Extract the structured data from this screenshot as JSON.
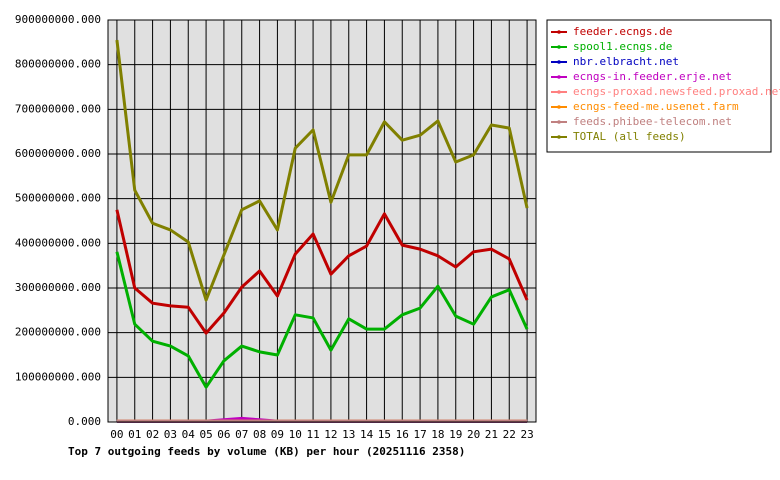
{
  "chart_data": {
    "type": "line",
    "title": "Top 7 outgoing feeds by volume (KB) per hour (20251116 2358)",
    "categories": [
      "00",
      "01",
      "02",
      "03",
      "04",
      "05",
      "06",
      "07",
      "08",
      "09",
      "10",
      "11",
      "12",
      "13",
      "14",
      "15",
      "16",
      "17",
      "18",
      "19",
      "20",
      "21",
      "22",
      "23"
    ],
    "ylim": [
      0,
      900000000
    ],
    "yticks": [
      {
        "value": 0,
        "label": "0.000"
      },
      {
        "value": 100000000,
        "label": "100000000.000"
      },
      {
        "value": 200000000,
        "label": "200000000.000"
      },
      {
        "value": 300000000,
        "label": "300000000.000"
      },
      {
        "value": 400000000,
        "label": "400000000.000"
      },
      {
        "value": 500000000,
        "label": "500000000.000"
      },
      {
        "value": 600000000,
        "label": "600000000.000"
      },
      {
        "value": 700000000,
        "label": "700000000.000"
      },
      {
        "value": 800000000,
        "label": "800000000.000"
      },
      {
        "value": 900000000,
        "label": "900000000.000"
      }
    ],
    "grid": true,
    "legend": "right",
    "series": [
      {
        "name": "feeder.ecngs.de",
        "color": "#c00000",
        "values": [
          475000000,
          300000000,
          266000000,
          260000000,
          257000000,
          199000000,
          244000000,
          302000000,
          338000000,
          282000000,
          376000000,
          421000000,
          331000000,
          372000000,
          394000000,
          466000000,
          396000000,
          387000000,
          372000000,
          347000000,
          381000000,
          387000000,
          365000000,
          273000000
        ]
      },
      {
        "name": "spool1.ecngs.de",
        "color": "#00b000",
        "values": [
          381000000,
          219000000,
          181000000,
          170000000,
          148000000,
          78000000,
          137000000,
          170000000,
          157000000,
          150000000,
          240000000,
          233000000,
          161000000,
          231000000,
          208000000,
          208000000,
          240000000,
          255000000,
          304000000,
          237000000,
          219000000,
          280000000,
          296000000,
          208000000
        ]
      },
      {
        "name": "nbr.elbracht.net",
        "color": "#0000c0",
        "values": [
          1000000,
          1000000,
          1000000,
          1000000,
          1000000,
          1000000,
          1000000,
          1000000,
          1000000,
          1000000,
          1000000,
          1000000,
          1000000,
          1000000,
          1000000,
          1000000,
          1000000,
          1000000,
          1000000,
          1000000,
          1000000,
          1000000,
          1000000,
          1000000
        ]
      },
      {
        "name": "ecngs-in.feeder.erje.net",
        "color": "#c000c0",
        "values": [
          2000000,
          2000000,
          2000000,
          2000000,
          2000000,
          2000000,
          5000000,
          8000000,
          5000000,
          2000000,
          2000000,
          2000000,
          2000000,
          2000000,
          2000000,
          2000000,
          2000000,
          2000000,
          2000000,
          2000000,
          2000000,
          2000000,
          2000000,
          2000000
        ]
      },
      {
        "name": "ecngs-proxad.newsfeed.proxad.net",
        "color": "#ff8080",
        "values": [
          2000000,
          2000000,
          2000000,
          2000000,
          2000000,
          2000000,
          2000000,
          2000000,
          2000000,
          2000000,
          2000000,
          2000000,
          2000000,
          2000000,
          2000000,
          2000000,
          2000000,
          2000000,
          2000000,
          2000000,
          2000000,
          2000000,
          2000000,
          2000000
        ]
      },
      {
        "name": "ecngs-feed-me.usenet.farm",
        "color": "#ff8c00",
        "values": [
          2000000,
          2000000,
          2000000,
          2000000,
          2000000,
          2000000,
          2000000,
          2000000,
          2000000,
          2000000,
          2000000,
          2000000,
          2000000,
          2000000,
          2000000,
          2000000,
          2000000,
          2000000,
          2000000,
          2000000,
          2000000,
          2000000,
          2000000,
          2000000
        ]
      },
      {
        "name": "feeds.phibee-telecom.net",
        "color": "#c08080",
        "values": [
          2000000,
          2000000,
          2000000,
          2000000,
          2000000,
          2000000,
          2000000,
          2000000,
          2000000,
          2000000,
          2000000,
          2000000,
          2000000,
          2000000,
          2000000,
          2000000,
          2000000,
          2000000,
          2000000,
          2000000,
          2000000,
          2000000,
          2000000,
          2000000
        ]
      },
      {
        "name": "TOTAL (all feeds)",
        "color": "#808000",
        "values": [
          855000000,
          519000000,
          445000000,
          430000000,
          403000000,
          273000000,
          374000000,
          475000000,
          495000000,
          430000000,
          613000000,
          654000000,
          492000000,
          598000000,
          598000000,
          672000000,
          631000000,
          642000000,
          674000000,
          582000000,
          598000000,
          665000000,
          658000000,
          479000000
        ]
      }
    ]
  }
}
